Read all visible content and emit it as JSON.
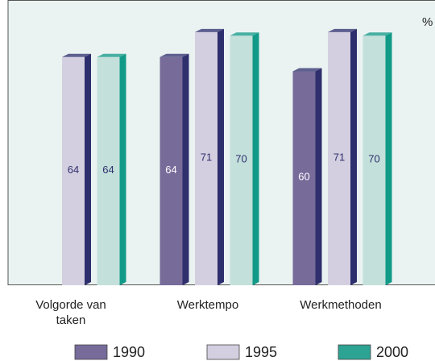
{
  "chart_data": {
    "type": "bar",
    "unit_label": "%",
    "categories": [
      "Volgorde van taken",
      "Werktempo",
      "Werkmethoden"
    ],
    "series": [
      {
        "name": "1990",
        "color": "#776b9a",
        "side_color": "#2f2f6e",
        "label_color": "#ffffff",
        "values": [
          null,
          64,
          60
        ]
      },
      {
        "name": "1995",
        "color": "#d4cfe0",
        "side_color": "#2d2e6e",
        "label_color": "#2f2f6e",
        "values": [
          64,
          71,
          71
        ]
      },
      {
        "name": "2000",
        "color": "#c3e0da",
        "side_color": "#129a88",
        "legend_color": "#2da393",
        "label_color": "#2f2f6e",
        "values": [
          64,
          70,
          70
        ]
      }
    ],
    "ylim": [
      0,
      80
    ]
  }
}
